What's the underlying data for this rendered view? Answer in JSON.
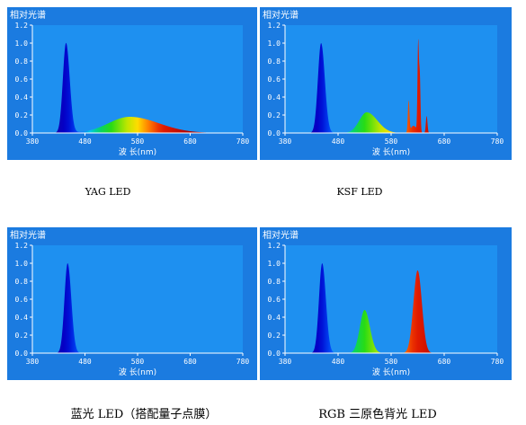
{
  "chart_data": [
    {
      "type": "area",
      "title": "相对光谱",
      "xlabel": "波 长(nm)",
      "xlim": [
        380,
        780
      ],
      "ylim": [
        0,
        1.2
      ],
      "xticks": [
        "380",
        "480",
        "580",
        "680",
        "780"
      ],
      "yticks": [
        "0.0",
        "0.2",
        "0.4",
        "0.6",
        "0.8",
        "1.0",
        "1.2"
      ],
      "grid": false,
      "caption": "YAG LED",
      "peaks": [
        {
          "center": 444,
          "height": 1.0,
          "sigma_left": 6,
          "sigma_right": 7
        },
        {
          "center": 565,
          "height": 0.18,
          "sigma_left": 40,
          "sigma_right": 55
        }
      ]
    },
    {
      "type": "area",
      "title": "相对光谱",
      "xlabel": "波 长(nm)",
      "xlim": [
        380,
        780
      ],
      "ylim": [
        0,
        1.2
      ],
      "xticks": [
        "380",
        "480",
        "580",
        "680",
        "780"
      ],
      "yticks": [
        "0.0",
        "0.2",
        "0.4",
        "0.6",
        "0.8",
        "1.0",
        "1.2"
      ],
      "grid": false,
      "caption": "KSF LED",
      "peaks": [
        {
          "center": 448,
          "height": 1.0,
          "sigma_left": 6,
          "sigma_right": 7
        },
        {
          "center": 534,
          "height": 0.23,
          "sigma_left": 14,
          "sigma_right": 20
        },
        {
          "center": 613,
          "height": 0.35,
          "sigma_left": 1.5,
          "sigma_right": 1.5
        },
        {
          "center": 631,
          "height": 0.98,
          "sigma_left": 1.3,
          "sigma_right": 1.3
        },
        {
          "center": 634,
          "height": 0.62,
          "sigma_left": 1.3,
          "sigma_right": 1.3
        },
        {
          "center": 647,
          "height": 0.19,
          "sigma_left": 1.5,
          "sigma_right": 1.5
        },
        {
          "center": 622,
          "height": 0.08,
          "sigma_left": 5,
          "sigma_right": 6
        }
      ]
    },
    {
      "type": "area",
      "title": "相对光谱",
      "xlabel": "波 长(nm)",
      "xlim": [
        380,
        780
      ],
      "ylim": [
        0,
        1.2
      ],
      "xticks": [
        "380",
        "480",
        "580",
        "680",
        "780"
      ],
      "yticks": [
        "0.0",
        "0.2",
        "0.4",
        "0.6",
        "0.8",
        "1.0",
        "1.2"
      ],
      "grid": false,
      "caption": "蓝光 LED（搭配量子点膜）",
      "peaks": [
        {
          "center": 447,
          "height": 1.0,
          "sigma_left": 6,
          "sigma_right": 7
        }
      ]
    },
    {
      "type": "area",
      "title": "相对光谱",
      "xlabel": "波 长(nm)",
      "xlim": [
        380,
        780
      ],
      "ylim": [
        0,
        1.2
      ],
      "xticks": [
        "380",
        "480",
        "580",
        "680",
        "780"
      ],
      "yticks": [
        "0.0",
        "0.2",
        "0.4",
        "0.6",
        "0.8",
        "1.0",
        "1.2"
      ],
      "grid": false,
      "caption": "RGB 三原色背光 LED",
      "peaks": [
        {
          "center": 450,
          "height": 1.0,
          "sigma_left": 6,
          "sigma_right": 7
        },
        {
          "center": 530,
          "height": 0.48,
          "sigma_left": 9,
          "sigma_right": 10
        },
        {
          "center": 630,
          "height": 0.92,
          "sigma_left": 8,
          "sigma_right": 8
        }
      ]
    }
  ],
  "colors": {
    "panel_background": "#1b7be0",
    "plot_background": "#1e90f0",
    "axis_text": "#ffffff"
  }
}
